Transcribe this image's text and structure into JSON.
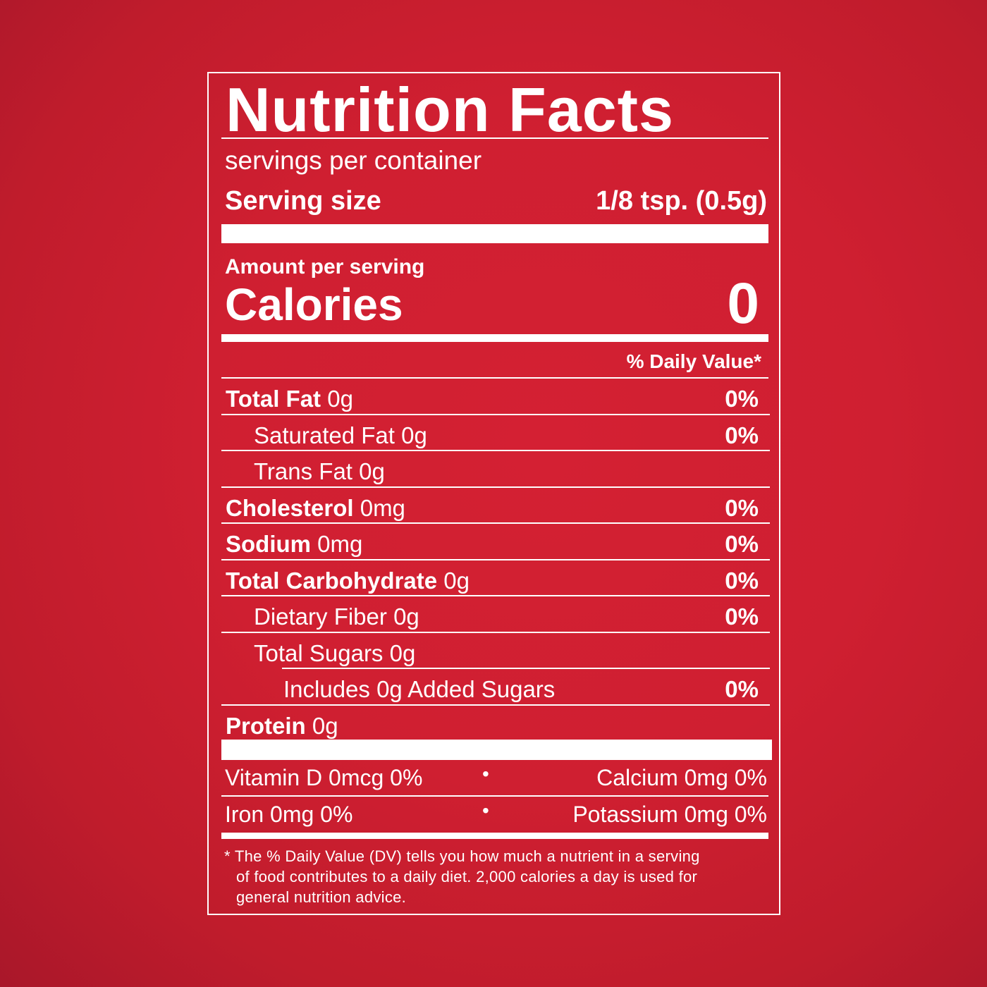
{
  "title": "Nutrition Facts",
  "servings_per_container": "servings per container",
  "serving_size": {
    "label": "Serving size",
    "value": "1/8 tsp. (0.5g)"
  },
  "amount_per_serving": "Amount per serving",
  "calories": {
    "label": "Calories",
    "value": "0"
  },
  "daily_value_header": "% Daily Value*",
  "nutrients": [
    {
      "name": "Total Fat",
      "amount": "0g",
      "dv": "0%"
    },
    {
      "name": "Saturated Fat",
      "amount": "0g",
      "dv": "0%"
    },
    {
      "name": "Trans Fat",
      "amount": "0g",
      "dv": ""
    },
    {
      "name": "Cholesterol",
      "amount": "0mg",
      "dv": "0%"
    },
    {
      "name": "Sodium",
      "amount": "0mg",
      "dv": "0%"
    },
    {
      "name": "Total Carbohydrate",
      "amount": "0g",
      "dv": "0%"
    },
    {
      "name": "Dietary Fiber",
      "amount": "0g",
      "dv": "0%"
    },
    {
      "name": "Total Sugars",
      "amount": "0g",
      "dv": ""
    },
    {
      "name": "Includes 0g Added Sugars",
      "amount": "",
      "dv": "0%"
    },
    {
      "name": "Protein",
      "amount": "0g",
      "dv": ""
    }
  ],
  "vitamins": [
    {
      "left": "Vitamin D 0mcg 0%",
      "right": "Calcium 0mg 0%"
    },
    {
      "left": "Iron 0mg 0%",
      "right": "Potassium 0mg 0%"
    }
  ],
  "separator": "•",
  "footnote": [
    "* The % Daily Value (DV) tells you how much a nutrient in a serving",
    "of food contributes to a daily diet. 2,000 calories a day is used for",
    "general nutrition advice."
  ],
  "colors": {
    "background": "#cf1f31",
    "text": "#ffffff"
  }
}
